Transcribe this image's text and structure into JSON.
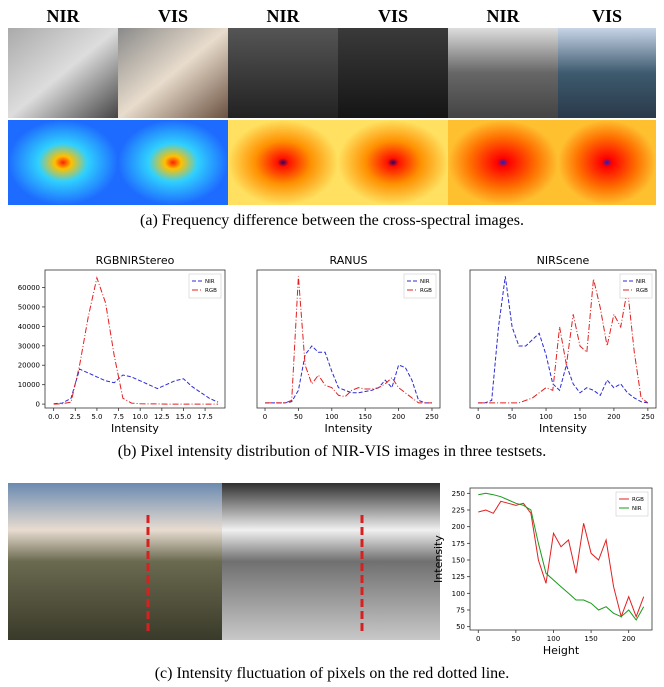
{
  "panel_a": {
    "labels": [
      "NIR",
      "VIS",
      "NIR",
      "VIS",
      "NIR",
      "VIS"
    ],
    "caption": "(a) Frequency difference between the cross-spectral images."
  },
  "panel_b": {
    "caption": "(b) Pixel intensity distribution of NIR-VIS images in three testsets."
  },
  "panel_c": {
    "caption": "(c) Intensity fluctuation of pixels on the red dotted line."
  },
  "chart_data": [
    {
      "type": "line",
      "title": "RGBNIRStereo",
      "x_label": "Intensity",
      "x": [
        0,
        1,
        2,
        3,
        4,
        5,
        6,
        7,
        8,
        9,
        10,
        11,
        12,
        13,
        14,
        15,
        16,
        17,
        18,
        19
      ],
      "xlim": [
        -1,
        19.8
      ],
      "ylim": [
        -2000,
        69000
      ],
      "xticks": [
        {
          "value": 0,
          "label": "0.0"
        },
        {
          "value": 2.5,
          "label": "2.5"
        },
        {
          "value": 5,
          "label": "5.0"
        },
        {
          "value": 7.5,
          "label": "7.5"
        },
        {
          "value": 10,
          "label": "10.0"
        },
        {
          "value": 12.5,
          "label": "12.5"
        },
        {
          "value": 15,
          "label": "15.0"
        },
        {
          "value": 17.5,
          "label": "17.5"
        }
      ],
      "yticks": [
        0,
        10000,
        20000,
        30000,
        40000,
        50000,
        60000
      ],
      "legend": "upper right",
      "series": [
        {
          "name": "NIR",
          "color": "#2b2bd6",
          "linestyle": "dashed",
          "values": [
            200,
            500,
            3000,
            18000,
            16000,
            14000,
            12000,
            11000,
            15000,
            14000,
            12000,
            10000,
            8000,
            10000,
            12000,
            13000,
            9000,
            6000,
            3000,
            1000
          ]
        },
        {
          "name": "RGB",
          "color": "#e02020",
          "linestyle": "dashdot",
          "values": [
            0,
            200,
            1000,
            20000,
            45000,
            65000,
            52000,
            25000,
            3000,
            500,
            200,
            100,
            100,
            0,
            0,
            0,
            0,
            0,
            0,
            0
          ]
        }
      ]
    },
    {
      "type": "line",
      "title": "RANUS",
      "x_label": "Intensity",
      "x": [
        0,
        10,
        20,
        30,
        40,
        50,
        60,
        70,
        80,
        90,
        100,
        110,
        120,
        130,
        140,
        150,
        160,
        170,
        180,
        190,
        200,
        210,
        220,
        230,
        240,
        250
      ],
      "xlim": [
        -12,
        262
      ],
      "ylim": [
        -4,
        105
      ],
      "xticks": [
        0,
        50,
        100,
        150,
        200,
        250
      ],
      "legend": "upper right",
      "series": [
        {
          "name": "NIR",
          "color": "#2b2bd6",
          "linestyle": "dashed",
          "values": [
            0,
            0,
            0,
            0,
            1,
            10,
            38,
            45,
            40,
            40,
            25,
            12,
            10,
            8,
            8,
            9,
            10,
            12,
            18,
            12,
            30,
            28,
            18,
            2,
            0,
            0
          ]
        },
        {
          "name": "RGB",
          "color": "#e02020",
          "linestyle": "dashdot",
          "values": [
            0,
            0,
            0,
            0,
            2,
            100,
            30,
            15,
            22,
            14,
            12,
            6,
            5,
            10,
            12,
            11,
            11,
            12,
            15,
            20,
            12,
            8,
            4,
            0,
            0,
            0
          ]
        }
      ]
    },
    {
      "type": "line",
      "title": "NIRScene",
      "x_label": "Intensity",
      "x": [
        0,
        10,
        20,
        30,
        40,
        50,
        60,
        70,
        80,
        90,
        100,
        110,
        120,
        130,
        140,
        150,
        160,
        170,
        180,
        190,
        200,
        210,
        220,
        230,
        240,
        250
      ],
      "xlim": [
        -12,
        262
      ],
      "ylim": [
        -4,
        105
      ],
      "xticks": [
        0,
        50,
        100,
        150,
        200,
        250
      ],
      "legend": "upper right",
      "series": [
        {
          "name": "NIR",
          "color": "#2b2bd6",
          "linestyle": "dashed",
          "values": [
            0,
            0,
            2,
            60,
            100,
            60,
            45,
            45,
            50,
            55,
            38,
            15,
            10,
            30,
            15,
            8,
            12,
            10,
            6,
            18,
            12,
            15,
            8,
            4,
            1,
            0
          ]
        },
        {
          "name": "RGB",
          "color": "#e02020",
          "linestyle": "dashdot",
          "values": [
            0,
            0,
            0,
            0,
            0,
            0,
            0,
            2,
            4,
            8,
            12,
            10,
            60,
            30,
            70,
            45,
            40,
            98,
            75,
            45,
            70,
            60,
            90,
            40,
            4,
            0
          ]
        }
      ]
    },
    {
      "type": "line",
      "x_label": "Height",
      "y_label": "Intensity",
      "x": [
        0,
        10,
        20,
        30,
        40,
        50,
        60,
        70,
        80,
        90,
        100,
        110,
        120,
        130,
        140,
        150,
        160,
        170,
        180,
        190,
        200,
        210,
        220
      ],
      "xlim": [
        -11,
        231
      ],
      "ylim": [
        45,
        258
      ],
      "xticks": [
        0,
        50,
        100,
        150,
        200
      ],
      "yticks": [
        50,
        75,
        100,
        125,
        150,
        175,
        200,
        225,
        250
      ],
      "legend": "upper right",
      "series": [
        {
          "name": "RGB",
          "color": "#e02020",
          "linestyle": "solid",
          "values": [
            222,
            225,
            220,
            238,
            235,
            232,
            235,
            220,
            150,
            115,
            190,
            170,
            180,
            130,
            205,
            160,
            150,
            180,
            110,
            65,
            95,
            65,
            95
          ]
        },
        {
          "name": "NIR",
          "color": "#1a9a1a",
          "linestyle": "solid",
          "values": [
            248,
            250,
            248,
            245,
            240,
            235,
            232,
            225,
            175,
            130,
            120,
            110,
            100,
            90,
            90,
            85,
            75,
            80,
            70,
            65,
            75,
            60,
            80
          ]
        }
      ]
    }
  ]
}
